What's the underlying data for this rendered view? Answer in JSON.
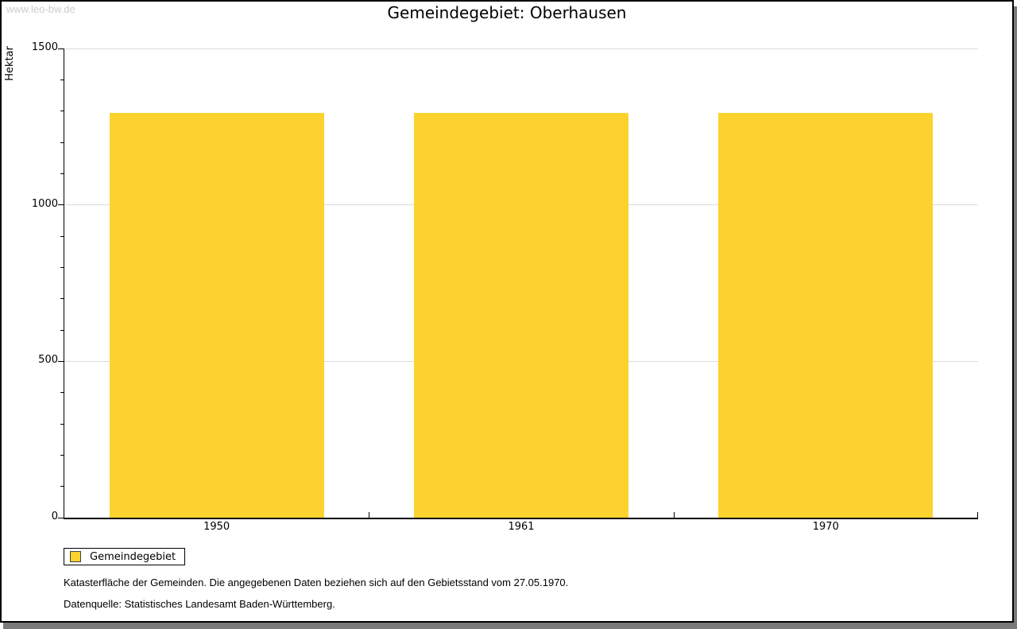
{
  "watermark": "www.leo-bw.de",
  "title": "Gemeindegebiet: Oberhausen",
  "legend": {
    "label": "Gemeindegebiet",
    "swatch_color": "#fcd32e"
  },
  "footnotes": {
    "line1": "Katasterfläche der Gemeinden. Die angegebenen Daten beziehen sich auf den Gebietsstand vom 27.05.1970.",
    "line2": "Datenquelle: Statistisches Landesamt Baden-Württemberg."
  },
  "colors": {
    "bar": "#fcd32e",
    "gridline": "#dcdcdc",
    "axis": "#000000",
    "watermark_text": "#cccccc",
    "frame_shadow": "#7a7a7a"
  },
  "chart_data": {
    "type": "bar",
    "title": "Gemeindegebiet: Oberhausen",
    "ylabel": "Hektar",
    "xlabel": "",
    "categories": [
      "1950",
      "1961",
      "1970"
    ],
    "series": [
      {
        "name": "Gemeindegebiet",
        "values": [
          1295,
          1295,
          1295
        ],
        "color": "#fcd32e"
      }
    ],
    "ylim": [
      0,
      1500
    ],
    "ytick_major": [
      0,
      500,
      1000,
      1500
    ],
    "ytick_minor_step": 100,
    "gridlines_at": [
      500,
      1000,
      1500
    ],
    "grid": "horizontal-major-only",
    "legend_position": "bottom-left"
  }
}
